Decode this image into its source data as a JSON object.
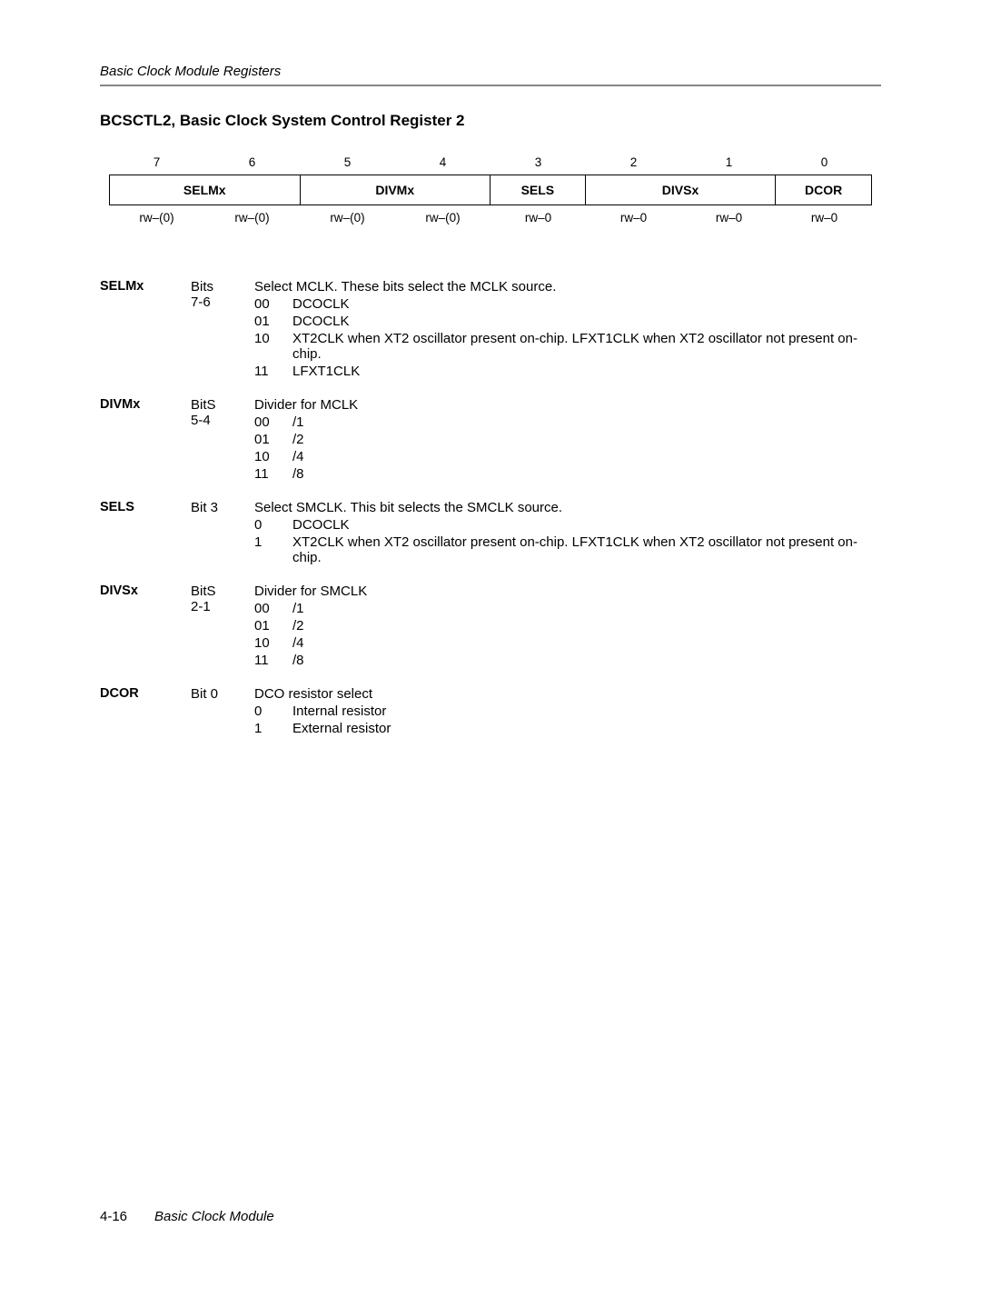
{
  "running_head": "Basic Clock Module Registers",
  "section_title": "BCSCTL2, Basic Clock System Control Register 2",
  "bit_numbers": [
    "7",
    "6",
    "5",
    "4",
    "3",
    "2",
    "1",
    "0"
  ],
  "reg_cells": [
    "SELMx",
    "DIVMx",
    "SELS",
    "DIVSx",
    "DCOR"
  ],
  "rw_row": [
    "rw–(0)",
    "rw–(0)",
    "rw–(0)",
    "rw–(0)",
    "rw–0",
    "rw–0",
    "rw–0",
    "rw–0"
  ],
  "fields": {
    "selmx": {
      "name": "SELMx",
      "bits_label1": "Bits",
      "bits_label2": "7-6",
      "intro": "Select MCLK. These bits select the MCLK source.",
      "opts": [
        {
          "code": "00",
          "text": "DCOCLK"
        },
        {
          "code": "01",
          "text": "DCOCLK"
        },
        {
          "code": "10",
          "text": "XT2CLK when XT2 oscillator present on-chip. LFXT1CLK when XT2 oscillator not present on-chip."
        },
        {
          "code": "11",
          "text": "LFXT1CLK"
        }
      ]
    },
    "divmx": {
      "name": "DIVMx",
      "bits_label1": "BitS",
      "bits_label2": "5-4",
      "intro": "Divider for MCLK",
      "opts": [
        {
          "code": "00",
          "text": "/1"
        },
        {
          "code": "01",
          "text": "/2"
        },
        {
          "code": "10",
          "text": "/4"
        },
        {
          "code": "11",
          "text": "/8"
        }
      ]
    },
    "sels": {
      "name": "SELS",
      "bits_label1": "Bit 3",
      "bits_label2": "",
      "intro": "Select SMCLK. This bit selects the SMCLK source.",
      "opts": [
        {
          "code": "0",
          "text": "DCOCLK"
        },
        {
          "code": "1",
          "text": "XT2CLK when XT2 oscillator present on-chip. LFXT1CLK when XT2 oscillator not present on-chip."
        }
      ]
    },
    "divsx": {
      "name": "DIVSx",
      "bits_label1": "BitS",
      "bits_label2": "2-1",
      "intro": "Divider for SMCLK",
      "opts": [
        {
          "code": "00",
          "text": "/1"
        },
        {
          "code": "01",
          "text": "/2"
        },
        {
          "code": "10",
          "text": "/4"
        },
        {
          "code": "11",
          "text": "/8"
        }
      ]
    },
    "dcor": {
      "name": "DCOR",
      "bits_label1": "Bit 0",
      "bits_label2": "",
      "intro": "DCO resistor select",
      "opts": [
        {
          "code": "0",
          "text": "Internal resistor"
        },
        {
          "code": "1",
          "text": "External resistor"
        }
      ]
    }
  },
  "footer": {
    "page": "4-16",
    "module": "Basic Clock Module"
  }
}
